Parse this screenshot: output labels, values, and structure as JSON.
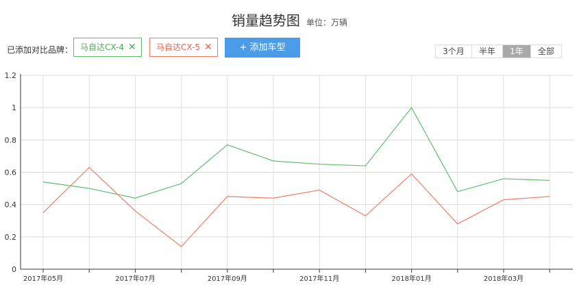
{
  "header": {
    "title": "销量趋势图",
    "unit": "单位：万辆"
  },
  "compare": {
    "label": "已添加对比品牌：",
    "brands": [
      {
        "name": "马自达CX-4",
        "color": "#5cbf6a"
      },
      {
        "name": "马自达CX-5",
        "color": "#f07b63"
      }
    ],
    "add_button": "+ 添加车型"
  },
  "time_range": {
    "options": [
      "3个月",
      "半年",
      "1年",
      "全部"
    ],
    "selected": "1年"
  },
  "chart_data": {
    "type": "line",
    "x": [
      "2017年05月",
      "2017年06月",
      "2017年07月",
      "2017年08月",
      "2017年09月",
      "2017年10月",
      "2017年11月",
      "2017年12月",
      "2018年01月",
      "2018年02月",
      "2018年03月",
      "2018年04月"
    ],
    "x_tick_labels": [
      "2017年05月",
      "",
      "2017年07月",
      "",
      "2017年09月",
      "",
      "2017年11月",
      "",
      "2018年01月",
      "",
      "2018年03月",
      ""
    ],
    "series": [
      {
        "name": "马自达CX-4",
        "color": "#5cbf6a",
        "values": [
          0.54,
          0.5,
          0.44,
          0.53,
          0.77,
          0.67,
          0.65,
          0.64,
          1.0,
          0.48,
          0.56,
          0.55
        ]
      },
      {
        "name": "马自达CX-5",
        "color": "#f07b63",
        "values": [
          0.35,
          0.63,
          0.36,
          0.14,
          0.45,
          0.44,
          0.49,
          0.33,
          0.59,
          0.28,
          0.43,
          0.45
        ]
      }
    ],
    "ylim": [
      0,
      1.2
    ],
    "yticks": [
      "0",
      "0.2",
      "0.4",
      "0.6",
      "0.8",
      "1",
      "1.2"
    ],
    "grid": true,
    "title": "",
    "xlabel": "",
    "ylabel": ""
  }
}
